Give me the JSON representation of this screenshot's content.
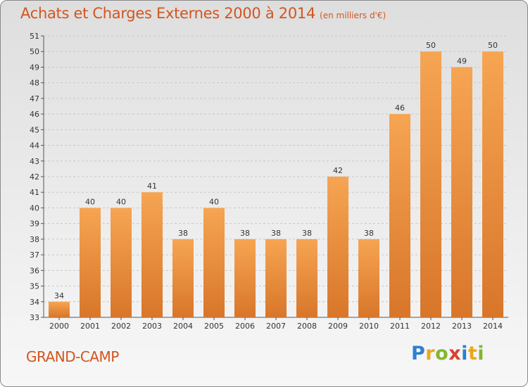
{
  "header": {
    "title": "Achats et Charges Externes 2000 à 2014",
    "unit": "(en milliers d'€)"
  },
  "footer": {
    "location": "GRAND-CAMP",
    "logo": [
      "P",
      "r",
      "o",
      "x",
      "i",
      "t",
      "i"
    ]
  },
  "colors": {
    "bar_top": "#f6a552",
    "bar_bottom": "#d8762a",
    "accent": "#d2551f",
    "grid": "#c8c8c8"
  },
  "chart_data": {
    "type": "bar",
    "title": "Achats et Charges Externes 2000 à 2014",
    "categories": [
      "2000",
      "2001",
      "2002",
      "2003",
      "2004",
      "2005",
      "2006",
      "2007",
      "2008",
      "2009",
      "2010",
      "2011",
      "2012",
      "2013",
      "2014"
    ],
    "values": [
      34,
      40,
      40,
      41,
      38,
      40,
      38,
      38,
      38,
      42,
      38,
      46,
      50,
      49,
      50
    ],
    "ylim": [
      33,
      51
    ],
    "yticks": [
      33,
      34,
      35,
      36,
      37,
      38,
      39,
      40,
      41,
      42,
      43,
      44,
      45,
      46,
      47,
      48,
      49,
      50,
      51
    ],
    "grid": true,
    "xlabel": "",
    "ylabel": ""
  }
}
